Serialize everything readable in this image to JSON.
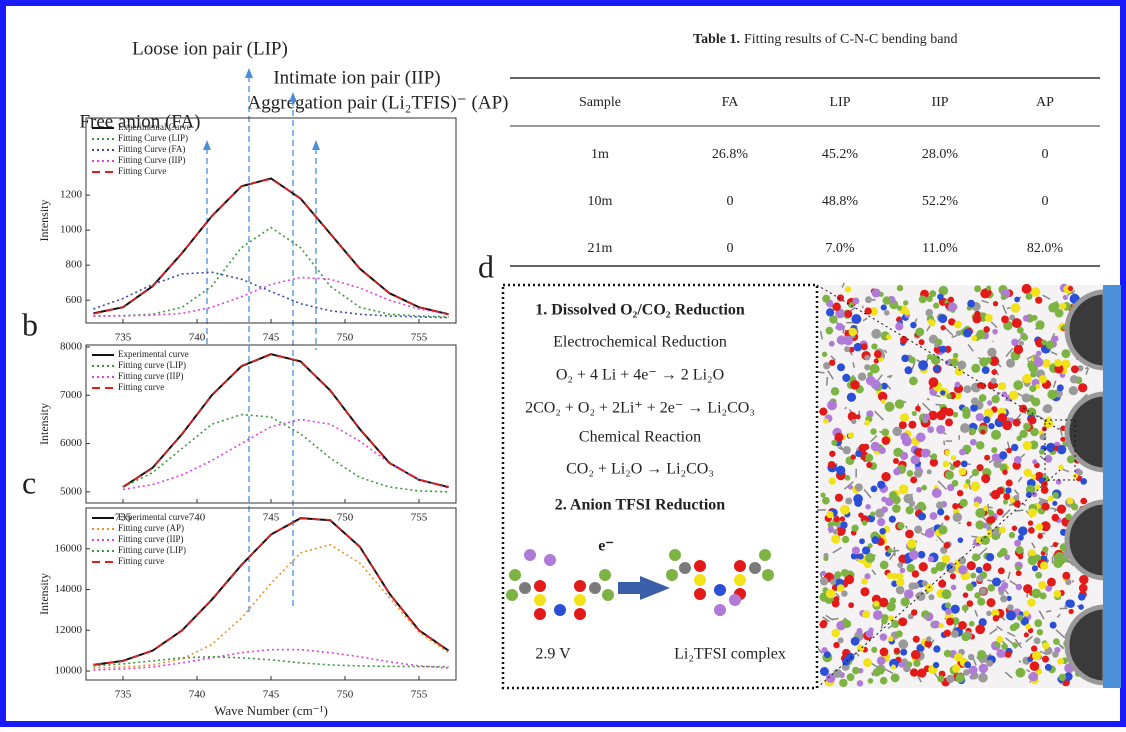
{
  "chart_data": [
    {
      "type": "line",
      "ylabel": "Intensity",
      "legend": "upper left",
      "xlim": [
        732.5,
        757.5
      ],
      "ylim": [
        470,
        1640
      ],
      "xticks": [
        735,
        740,
        745,
        750,
        755
      ],
      "yticks": [
        600,
        800,
        1000,
        1200
      ],
      "x": [
        733,
        735,
        737,
        739,
        741,
        743,
        745,
        747,
        749,
        751,
        753,
        755,
        757
      ],
      "series": [
        {
          "name": "Experimental Curve",
          "color": "#111111",
          "style": "solid",
          "values": [
            525,
            560,
            680,
            870,
            1080,
            1250,
            1295,
            1180,
            980,
            780,
            640,
            560,
            520
          ]
        },
        {
          "name": "Fitting Curve  (LIP)",
          "color": "#3a9a3a",
          "style": "dotted",
          "values": [
            510,
            512,
            520,
            560,
            680,
            900,
            1015,
            900,
            680,
            560,
            520,
            510,
            505
          ]
        },
        {
          "name": "Fitting Curve (FA)",
          "color": "#3b4aa8",
          "style": "dotted",
          "values": [
            550,
            610,
            690,
            750,
            760,
            720,
            650,
            580,
            540,
            520,
            510,
            505,
            500
          ]
        },
        {
          "name": "Fitting Curve (IIP)",
          "color": "#e040e0",
          "style": "dotted",
          "values": [
            510,
            510,
            515,
            525,
            560,
            620,
            690,
            730,
            720,
            670,
            600,
            550,
            520
          ]
        },
        {
          "name": "Fitting Curve",
          "color": "#e02020",
          "style": "dashed",
          "values": [
            522,
            562,
            678,
            872,
            1078,
            1252,
            1292,
            1182,
            978,
            782,
            638,
            562,
            518
          ]
        }
      ]
    },
    {
      "type": "line",
      "ylabel": "Intensity",
      "legend": "upper left",
      "xlim": [
        732.5,
        757.5
      ],
      "ylim": [
        4770,
        8040
      ],
      "xticks": [
        735,
        740,
        745,
        750,
        755
      ],
      "yticks": [
        5000,
        6000,
        7000,
        8000
      ],
      "x": [
        735,
        737,
        739,
        741,
        743,
        745,
        747,
        749,
        751,
        753,
        755,
        757
      ],
      "series": [
        {
          "name": "Experimental curve",
          "color": "#111111",
          "style": "solid",
          "values": [
            5100,
            5500,
            6200,
            7000,
            7600,
            7850,
            7700,
            7100,
            6300,
            5600,
            5250,
            5100
          ]
        },
        {
          "name": "Fitting curve (LIP)",
          "color": "#3a9a3a",
          "style": "dotted",
          "values": [
            5100,
            5400,
            5900,
            6400,
            6600,
            6550,
            6200,
            5700,
            5300,
            5100,
            5020,
            5000
          ]
        },
        {
          "name": "Fitting curve (IIP)",
          "color": "#e040e0",
          "style": "dotted",
          "values": [
            5050,
            5150,
            5350,
            5650,
            6000,
            6350,
            6500,
            6400,
            6050,
            5600,
            5250,
            5080
          ]
        },
        {
          "name": "Fitting curve",
          "color": "#e02020",
          "style": "dashed",
          "values": [
            5110,
            5490,
            6210,
            6990,
            7610,
            7840,
            7710,
            7090,
            6310,
            5590,
            5260,
            5090
          ]
        }
      ]
    },
    {
      "type": "line",
      "ylabel": "Intensity",
      "xlabel": "Wave Number (cm⁻¹)",
      "legend": "upper left",
      "xlim": [
        732.5,
        757.5
      ],
      "ylim": [
        9560,
        18000
      ],
      "xticks": [
        735,
        740,
        745,
        750,
        755
      ],
      "yticks": [
        10000,
        12000,
        14000,
        16000
      ],
      "x": [
        733,
        735,
        737,
        739,
        741,
        743,
        745,
        747,
        749,
        751,
        753,
        755,
        757
      ],
      "series": [
        {
          "name": "Experimental curve",
          "color": "#111111",
          "style": "solid",
          "values": [
            10300,
            10500,
            11000,
            12000,
            13500,
            15200,
            16700,
            17500,
            17400,
            16100,
            13800,
            12000,
            11000
          ]
        },
        {
          "name": "Fitting curve (AP)",
          "color": "#f0902a",
          "style": "dotted",
          "values": [
            10150,
            10200,
            10300,
            10600,
            11300,
            12600,
            14300,
            15800,
            16200,
            15300,
            13600,
            11900,
            10900
          ]
        },
        {
          "name": "Fitting curve (IIP)",
          "color": "#e040e0",
          "style": "dotted",
          "values": [
            10050,
            10100,
            10200,
            10400,
            10650,
            10900,
            11050,
            11050,
            10900,
            10700,
            10450,
            10250,
            10150
          ]
        },
        {
          "name": "Fitting curve (LIP)",
          "color": "#3a9a3a",
          "style": "dotted",
          "values": [
            10250,
            10350,
            10500,
            10650,
            10700,
            10650,
            10550,
            10400,
            10300,
            10250,
            10230,
            10220,
            10210
          ]
        },
        {
          "name": "Fitting curve",
          "color": "#e02020",
          "style": "dashed",
          "values": [
            10320,
            10480,
            11020,
            11980,
            13520,
            15180,
            16720,
            17480,
            17420,
            16080,
            13820,
            11980,
            11020
          ]
        }
      ]
    }
  ],
  "annotations": [
    "Loose ion pair (LIP)",
    "Intimate ion pair (IIP)",
    "Free anion (FA)",
    "Aggregation pair (Li₂TFIS)⁻ (AP)"
  ],
  "panel_labels": [
    "b",
    "c",
    "d"
  ],
  "table": {
    "label": "Table 1.",
    "caption": "Fitting results of C-N-C bending band",
    "header": [
      "Sample",
      "FA",
      "LIP",
      "IIP",
      "AP"
    ],
    "rows": [
      [
        "1m",
        "26.8%",
        "45.2%",
        "28.0%",
        "0"
      ],
      [
        "10m",
        "0",
        "48.8%",
        "52.2%",
        "0"
      ],
      [
        "21m",
        "0",
        "7.0%",
        "11.0%",
        "82.0%"
      ]
    ]
  },
  "scheme": {
    "heading1": "1. Dissolved O₂/CO₂ Reduction",
    "sub1": "Electrochemical Reduction",
    "eq1": "O₂ + 4 Li + 4e⁻ → 2 Li₂O",
    "eq2": "2CO₂ + O₂ + 2Li⁺ + 2e⁻ → Li₂CO₃",
    "sub2": "Chemical  Reaction",
    "eq3": "CO₂ + Li₂O → Li₂CO₃",
    "heading2": "2. Anion TFSI Reduction",
    "electron": "e⁻",
    "voltage": "2.9 V",
    "complex": "Li₂TFSI complex"
  }
}
